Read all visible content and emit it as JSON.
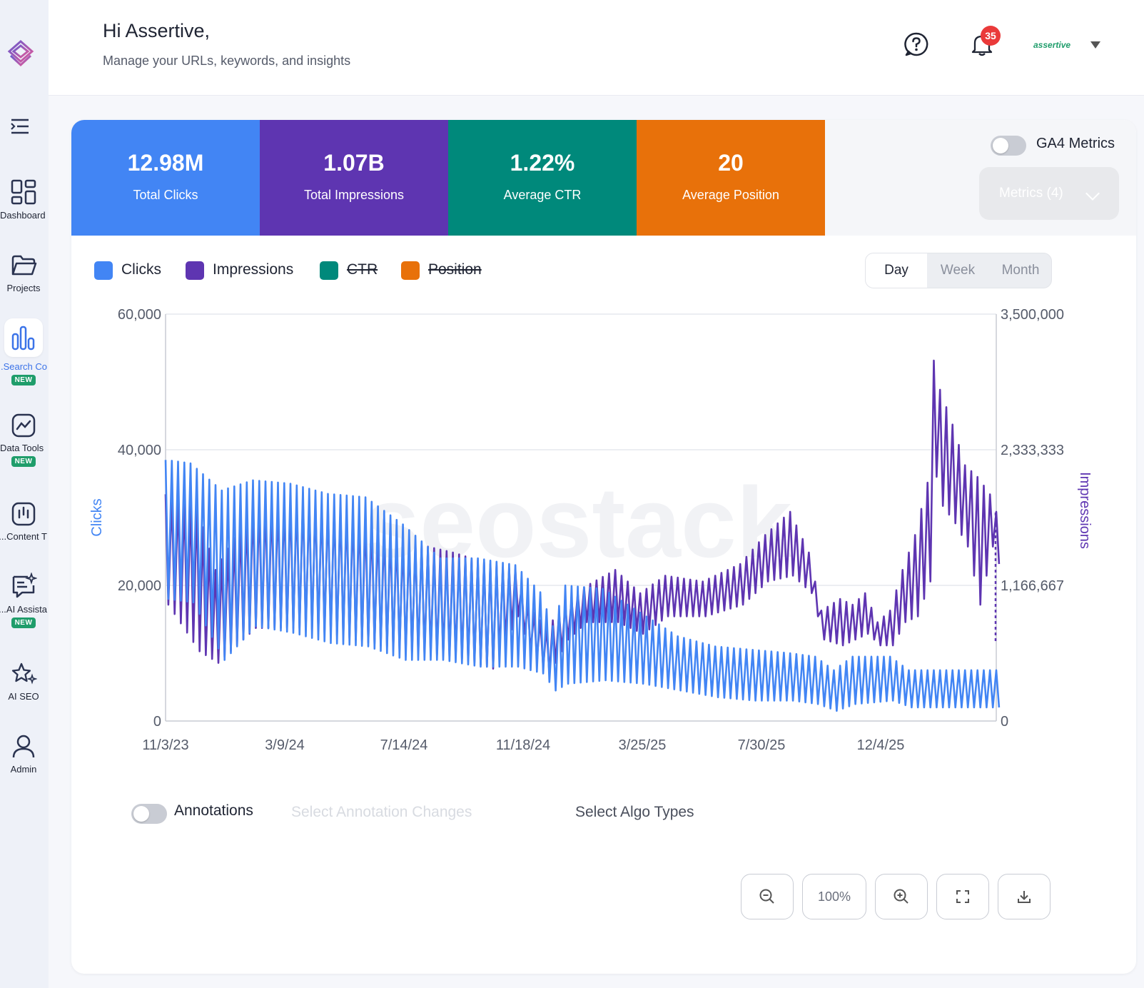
{
  "header": {
    "greeting": "Hi Assertive,",
    "subtitle": "Manage your URLs, keywords, and insights",
    "notifications_count": "35",
    "account_name": "assertive"
  },
  "sidebar": {
    "items": [
      {
        "label": "Dashboard",
        "icon": "dashboard-icon",
        "badge": ""
      },
      {
        "label": "Projects",
        "icon": "folder-icon",
        "badge": ""
      },
      {
        "label": "Search Co...",
        "icon": "bar-chart-icon",
        "badge": "NEW"
      },
      {
        "label": "Data Tools",
        "icon": "trend-icon",
        "badge": "NEW"
      },
      {
        "label": "Content T...",
        "icon": "content-icon",
        "badge": ""
      },
      {
        "label": "AI Assista...",
        "icon": "chat-sparkle-icon",
        "badge": "NEW"
      },
      {
        "label": "AI SEO",
        "icon": "sparkle-star-icon",
        "badge": ""
      },
      {
        "label": "Admin",
        "icon": "user-icon",
        "badge": ""
      }
    ]
  },
  "metrics": [
    {
      "value": "12.98M",
      "label": "Total Clicks",
      "color": "#4285f4"
    },
    {
      "value": "1.07B",
      "label": "Total Impressions",
      "color": "#5e35b1"
    },
    {
      "value": "1.22%",
      "label": "Average CTR",
      "color": "#00897b"
    },
    {
      "value": "20",
      "label": "Average Position",
      "color": "#e8710a"
    }
  ],
  "ga4": {
    "label": "GA4 Metrics",
    "enabled": false
  },
  "metrics_dropdown": {
    "label": "Metrics (4)"
  },
  "legend": [
    {
      "label": "Clicks",
      "color": "#4285f4",
      "active": true
    },
    {
      "label": "Impressions",
      "color": "#5e35b1",
      "active": true
    },
    {
      "label": "CTR",
      "color": "#00897b",
      "active": false
    },
    {
      "label": "Position",
      "color": "#e8710a",
      "active": false
    }
  ],
  "granularity": {
    "options": [
      "Day",
      "Week",
      "Month"
    ],
    "selected": "Day"
  },
  "chart_data": {
    "type": "line",
    "watermark": "seostack",
    "x_ticks": [
      "11/3/23",
      "3/9/24",
      "7/14/24",
      "11/18/24",
      "3/25/25",
      "7/30/25",
      "12/4/25"
    ],
    "y_left": {
      "label": "Clicks",
      "ticks": [
        "60,000",
        "40,000",
        "20,000",
        "0"
      ],
      "lim": [
        0,
        60000
      ]
    },
    "y_right": {
      "label": "Impressions",
      "ticks": [
        "3,500,000",
        "2,333,333",
        "1,166,667",
        "0"
      ],
      "lim": [
        0,
        3500000
      ]
    },
    "grid": true,
    "series": [
      {
        "name": "Clicks",
        "axis": "left",
        "color": "#4285f4",
        "weekly_points": [
          {
            "week": 0,
            "high": 38500,
            "low": 18000
          },
          {
            "week": 4,
            "high": 38000,
            "low": 17500
          },
          {
            "week": 9,
            "high": 34000,
            "low": 9000
          },
          {
            "week": 14,
            "high": 35500,
            "low": 14000
          },
          {
            "week": 20,
            "high": 35000,
            "low": 13000
          },
          {
            "week": 26,
            "high": 33500,
            "low": 11500
          },
          {
            "week": 32,
            "high": 33000,
            "low": 11000
          },
          {
            "week": 38,
            "high": 29000,
            "low": 9000
          },
          {
            "week": 44,
            "high": 24000,
            "low": 9000
          },
          {
            "week": 50,
            "high": 24000,
            "low": 8000
          },
          {
            "week": 56,
            "high": 23000,
            "low": 8000
          },
          {
            "week": 60,
            "high": 19000,
            "low": 7000
          },
          {
            "week": 62,
            "high": 14000,
            "low": 4500
          },
          {
            "week": 64,
            "high": 20000,
            "low": 5500
          },
          {
            "week": 70,
            "high": 19500,
            "low": 6000
          },
          {
            "week": 76,
            "high": 16000,
            "low": 5500
          },
          {
            "week": 82,
            "high": 12500,
            "low": 4500
          },
          {
            "week": 88,
            "high": 11000,
            "low": 3500
          },
          {
            "week": 94,
            "high": 10500,
            "low": 3000
          },
          {
            "week": 100,
            "high": 10000,
            "low": 3000
          },
          {
            "week": 104,
            "high": 9500,
            "low": 2500
          },
          {
            "week": 107,
            "high": 7500,
            "low": 1500
          },
          {
            "week": 110,
            "high": 9500,
            "low": 2500
          },
          {
            "week": 116,
            "high": 9500,
            "low": 3000
          },
          {
            "week": 119,
            "high": 7500,
            "low": 2000
          }
        ]
      },
      {
        "name": "Impressions",
        "axis": "right",
        "color": "#5e35b1",
        "weekly_points": [
          {
            "week": 0,
            "high": 1950000,
            "low": 1000000
          },
          {
            "week": 5,
            "high": 1850000,
            "low": 600000
          },
          {
            "week": 8,
            "high": 1300000,
            "low": 500000
          },
          {
            "week": 14,
            "high": 1850000,
            "low": 800000
          },
          {
            "week": 22,
            "high": 1900000,
            "low": 800000
          },
          {
            "week": 30,
            "high": 1800000,
            "low": 700000
          },
          {
            "week": 38,
            "high": 1550000,
            "low": 600000
          },
          {
            "week": 46,
            "high": 1450000,
            "low": 550000
          },
          {
            "week": 52,
            "high": 1350000,
            "low": 450000
          },
          {
            "week": 56,
            "high": 1300000,
            "low": 900000
          },
          {
            "week": 58,
            "high": 1000000,
            "low": 600000
          },
          {
            "week": 61,
            "high": 800000,
            "low": 400000
          },
          {
            "week": 64,
            "high": 1000000,
            "low": 700000
          },
          {
            "week": 67,
            "high": 1150000,
            "low": 850000
          },
          {
            "week": 72,
            "high": 1300000,
            "low": 850000
          },
          {
            "week": 76,
            "high": 1100000,
            "low": 750000
          },
          {
            "week": 80,
            "high": 1250000,
            "low": 900000
          },
          {
            "week": 86,
            "high": 1200000,
            "low": 900000
          },
          {
            "week": 92,
            "high": 1350000,
            "low": 1000000
          },
          {
            "week": 96,
            "high": 1600000,
            "low": 1200000
          },
          {
            "week": 100,
            "high": 1800000,
            "low": 1250000
          },
          {
            "week": 103,
            "high": 1450000,
            "low": 1100000
          },
          {
            "week": 105,
            "high": 950000,
            "low": 700000
          },
          {
            "week": 108,
            "high": 1050000,
            "low": 650000
          },
          {
            "week": 110,
            "high": 1000000,
            "low": 700000
          },
          {
            "week": 112,
            "high": 1100000,
            "low": 750000
          },
          {
            "week": 114,
            "high": 850000,
            "low": 650000
          },
          {
            "week": 116,
            "high": 950000,
            "low": 650000
          },
          {
            "week": 118,
            "high": 1300000,
            "low": 850000
          },
          {
            "week": 120,
            "high": 1600000,
            "low": 900000
          },
          {
            "week": 122,
            "high": 2050000,
            "low": 1200000
          },
          {
            "week": 123,
            "high": 3100000,
            "low": 2100000
          },
          {
            "week": 124,
            "high": 2850000,
            "low": 1850000
          },
          {
            "week": 126,
            "high": 2550000,
            "low": 1700000
          },
          {
            "week": 128,
            "high": 2200000,
            "low": 1500000
          },
          {
            "week": 130,
            "high": 2100000,
            "low": 1000000
          },
          {
            "week": 132,
            "high": 1950000,
            "low": 1500000
          },
          {
            "week": 133,
            "high": 1800000,
            "low": 1350000
          }
        ]
      }
    ]
  },
  "annotations": {
    "label": "Annotations",
    "enabled": false,
    "changes_placeholder": "Select Annotation Changes",
    "algo_placeholder": "Select Algo Types"
  },
  "toolbar": {
    "zoom_level": "100%"
  }
}
